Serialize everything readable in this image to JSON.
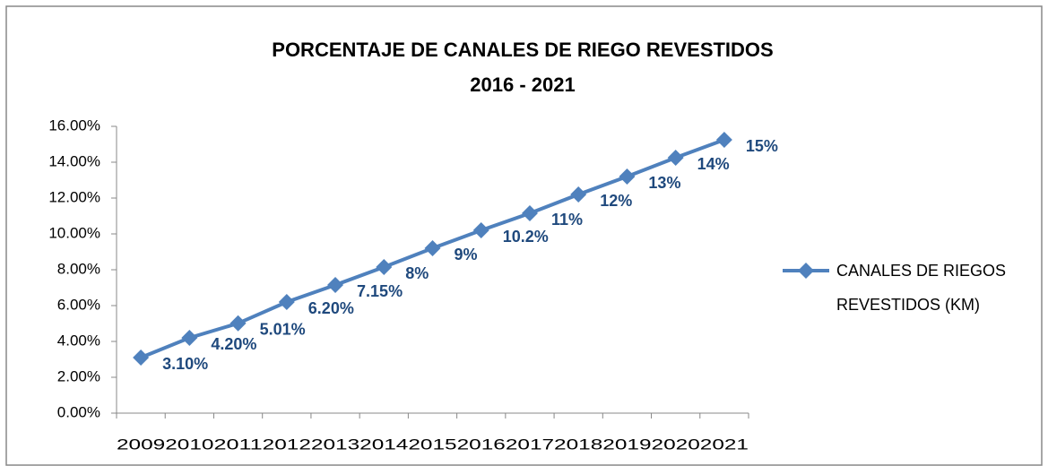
{
  "chart_data": {
    "type": "line",
    "title": "PORCENTAJE DE CANALES DE RIEGO REVESTIDOS",
    "subtitle": "2016 - 2021",
    "categories": [
      "2009",
      "2010",
      "2011",
      "2012",
      "2013",
      "2014",
      "2015",
      "2016",
      "2017",
      "2018",
      "2019",
      "2020",
      "2021"
    ],
    "series": [
      {
        "name": "CANALES DE RIEGOS REVESTIDOS (KM)",
        "color": "#4f81bd",
        "values": [
          3.1,
          4.2,
          5.01,
          6.2,
          7.15,
          8.15,
          9.2,
          10.2,
          11.15,
          12.2,
          13.2,
          14.25,
          15.25
        ],
        "value_labels": [
          "3.10%",
          "4.20%",
          "5.01%",
          "6.20%",
          "7.15%",
          "8%",
          "9%",
          "10.2%",
          "11%",
          "12%",
          "13%",
          "14%",
          "15%"
        ]
      }
    ],
    "ylim": [
      0,
      16
    ],
    "yticks": [
      {
        "value": 0,
        "label": "0.00%"
      },
      {
        "value": 2,
        "label": "2.00%"
      },
      {
        "value": 4,
        "label": "4.00%"
      },
      {
        "value": 6,
        "label": "6.00%"
      },
      {
        "value": 8,
        "label": "8.00%"
      },
      {
        "value": 10,
        "label": "10.00%"
      },
      {
        "value": 12,
        "label": "12.00%"
      },
      {
        "value": 14,
        "label": "14.00%"
      },
      {
        "value": 16,
        "label": "16.00%"
      }
    ],
    "grid": false,
    "legend": "right"
  }
}
